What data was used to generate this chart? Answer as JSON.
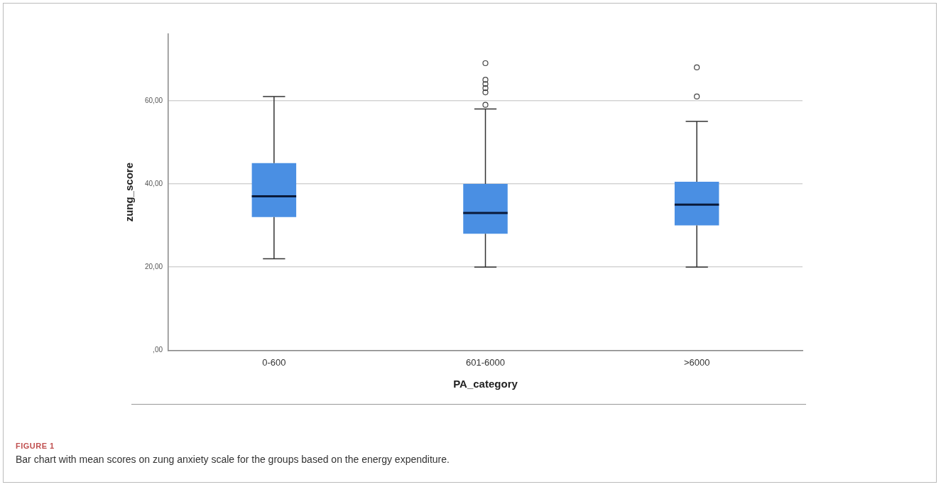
{
  "chart_data": {
    "type": "box",
    "xlabel": "PA_category",
    "ylabel": "zung_score",
    "categories": [
      "0-600",
      "601-6000",
      ">6000"
    ],
    "color": "#4a8fe3",
    "boxes": [
      {
        "low": 22,
        "q1": 32,
        "median": 37,
        "q3": 45,
        "high": 61
      },
      {
        "low": 20,
        "q1": 28,
        "median": 33,
        "q3": 40,
        "high": 58,
        "outliers": [
          59,
          62,
          63,
          64,
          65,
          69
        ]
      },
      {
        "low": 20,
        "q1": 30,
        "median": 35,
        "q3": 40.5,
        "high": 55,
        "outliers": [
          61,
          68
        ]
      }
    ],
    "ylim": [
      0,
      76
    ],
    "yticks": [
      {
        "value": 0,
        "label": ",00"
      },
      {
        "value": 20,
        "label": "20,00"
      },
      {
        "value": 40,
        "label": "40,00"
      },
      {
        "value": 60,
        "label": "60,00"
      }
    ],
    "grid": "y",
    "annotations": [
      "FIGURE 1",
      "Bar chart with mean scores on zung anxiety scale for the groups based on the energy expenditure."
    ]
  }
}
